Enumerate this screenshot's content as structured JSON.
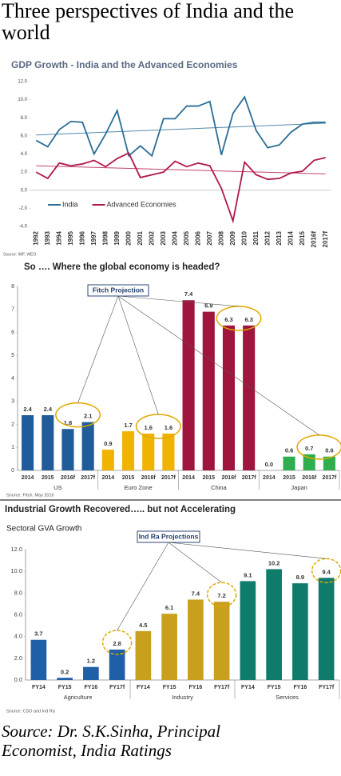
{
  "title": "Three perspectives of India and the world",
  "chart_data": [
    {
      "type": "line",
      "title": "GDP Growth - India and the Advanced Economies",
      "categories": [
        "1992",
        "1993",
        "1994",
        "1995",
        "1996",
        "1997",
        "1998",
        "1999",
        "2000",
        "2001",
        "2002",
        "2003",
        "2004",
        "2005",
        "2006",
        "2007",
        "2008",
        "2009",
        "2010",
        "2011",
        "2012",
        "2013",
        "2014",
        "2015",
        "2016f",
        "2017f"
      ],
      "series": [
        {
          "name": "India",
          "color": "#2a6d96",
          "values": [
            5.5,
            4.8,
            6.7,
            7.6,
            7.5,
            4.0,
            6.2,
            8.8,
            3.8,
            4.9,
            3.8,
            7.9,
            7.9,
            9.3,
            9.3,
            9.8,
            3.9,
            8.5,
            10.3,
            6.6,
            4.7,
            5.0,
            6.4,
            7.3,
            7.5,
            7.5
          ],
          "trend": [
            6.1,
            7.4
          ]
        },
        {
          "name": "Advanced Economies",
          "color": "#b0174a",
          "values": [
            2.0,
            1.3,
            3.0,
            2.7,
            2.9,
            3.3,
            2.6,
            3.5,
            4.1,
            1.4,
            1.7,
            2.0,
            3.2,
            2.6,
            3.0,
            2.7,
            0.2,
            -3.4,
            3.1,
            1.7,
            1.2,
            1.3,
            1.9,
            2.1,
            3.3,
            3.6
          ],
          "trend": [
            2.7,
            1.8
          ]
        }
      ],
      "ylim": [
        -4,
        12
      ],
      "yticks": [
        {
          "value": -4,
          "label": "-4.0"
        },
        {
          "value": -2,
          "label": "-2.0"
        },
        {
          "value": 0,
          "label": "0.0"
        },
        {
          "value": 2,
          "label": "2.0"
        },
        {
          "value": 4,
          "label": "4.0"
        },
        {
          "value": 6,
          "label": "6.0"
        },
        {
          "value": 8,
          "label": "8.0"
        },
        {
          "value": 10,
          "label": "10.0"
        },
        {
          "value": 12,
          "label": "12.0"
        }
      ],
      "legend": "lower left",
      "source": "Source: IMF, WEO"
    },
    {
      "type": "bar",
      "title": "So …. Where the global economy is headed?",
      "groups": [
        {
          "name": "US",
          "color": "#1f5c99",
          "categories": [
            "2014",
            "2015",
            "2016f",
            "2017f"
          ],
          "values": [
            2.4,
            2.4,
            1.8,
            2.1
          ],
          "value_labels": [
            "2.4",
            "2.4",
            "1.8",
            "2.1"
          ]
        },
        {
          "name": "Euro Zone",
          "color": "#f0b400",
          "categories": [
            "2014",
            "2015",
            "2016f",
            "2017f"
          ],
          "values": [
            0.9,
            1.7,
            1.6,
            1.6
          ],
          "value_labels": [
            "0.9",
            "1.7",
            "1.6",
            "1.6"
          ]
        },
        {
          "name": "China",
          "color": "#a0153e",
          "categories": [
            "2014",
            "2015",
            "2016f",
            "2017f"
          ],
          "values": [
            7.4,
            6.9,
            6.3,
            6.3
          ],
          "value_labels": [
            "7.4",
            "6.9",
            "6.3",
            "6.3"
          ]
        },
        {
          "name": "Japan",
          "color": "#2eae4e",
          "categories": [
            "2014",
            "2015",
            "2016f",
            "2017f"
          ],
          "values": [
            0.0,
            0.6,
            0.7,
            0.6
          ],
          "value_labels": [
            "0.0",
            "0.6",
            "0.7",
            "0.6"
          ]
        }
      ],
      "ylim": [
        0,
        8
      ],
      "yticks": [
        0,
        1,
        2,
        3,
        4,
        5,
        6,
        7,
        8
      ],
      "annotation": "Fitch Projection",
      "source": "Source: Fitch, May 2016"
    },
    {
      "type": "bar",
      "title": "Industrial Growth Recovered….. but not Accelerating",
      "subtitle": "Sectoral GVA Growth",
      "groups": [
        {
          "name": "Agriculture",
          "color": "#1f5fa8",
          "categories": [
            "FY14",
            "FY15",
            "FY16",
            "FY17f"
          ],
          "values": [
            3.7,
            0.2,
            1.2,
            2.8
          ],
          "value_labels": [
            "3.7",
            "0.2",
            "1.2",
            "2.8"
          ]
        },
        {
          "name": "Industry",
          "color": "#c9a01e",
          "categories": [
            "FY14",
            "FY15",
            "FY16",
            "FY17f"
          ],
          "values": [
            4.5,
            6.1,
            7.4,
            7.2
          ],
          "value_labels": [
            "4.5",
            "6.1",
            "7.4",
            "7.2"
          ]
        },
        {
          "name": "Services",
          "color": "#0e7b6b",
          "categories": [
            "FY14",
            "FY15",
            "FY16",
            "FY17f"
          ],
          "values": [
            9.1,
            10.2,
            8.9,
            9.4
          ],
          "value_labels": [
            "9.1",
            "10.2",
            "8.9",
            "9.4"
          ]
        }
      ],
      "ylim": [
        0,
        12
      ],
      "yticks": [
        {
          "value": 0,
          "label": "0.0"
        },
        {
          "value": 2,
          "label": "2.0"
        },
        {
          "value": 4,
          "label": "4.0"
        },
        {
          "value": 6,
          "label": "6.0"
        },
        {
          "value": 8,
          "label": "8.0"
        },
        {
          "value": 10,
          "label": "10.0"
        },
        {
          "value": 12,
          "label": "12.0"
        }
      ],
      "annotation": "Ind Ra Projections",
      "source": "Source: CSO and Ind Ra"
    }
  ],
  "source": "Source: Dr. S.K.Sinha, Principal Economist, India Ratings"
}
